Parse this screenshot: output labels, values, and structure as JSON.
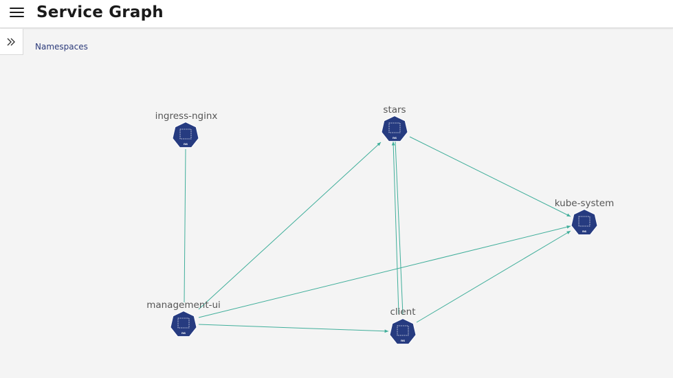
{
  "header": {
    "title": "Service Graph"
  },
  "breadcrumb": {
    "label": "Namespaces"
  },
  "colors": {
    "node_fill": "#263b80",
    "edge": "#3fae9a",
    "background": "#f4f4f4"
  },
  "graph": {
    "nodes": [
      {
        "id": "ingress-nginx",
        "label": "ingress-nginx",
        "badge": "ns",
        "icon": "namespace-icon"
      },
      {
        "id": "stars",
        "label": "stars",
        "badge": "ns",
        "icon": "namespace-icon"
      },
      {
        "id": "kube-system",
        "label": "kube-system",
        "badge": "ns",
        "icon": "namespace-icon"
      },
      {
        "id": "management-ui",
        "label": "management-ui",
        "badge": "ns",
        "icon": "namespace-icon"
      },
      {
        "id": "client",
        "label": "client",
        "badge": "ns",
        "icon": "namespace-icon"
      }
    ],
    "edges": [
      {
        "from": "management-ui",
        "to": "ingress-nginx"
      },
      {
        "from": "management-ui",
        "to": "stars"
      },
      {
        "from": "management-ui",
        "to": "kube-system"
      },
      {
        "from": "management-ui",
        "to": "client"
      },
      {
        "from": "stars",
        "to": "kube-system"
      },
      {
        "from": "client",
        "to": "stars"
      },
      {
        "from": "stars",
        "to": "client"
      },
      {
        "from": "client",
        "to": "kube-system"
      }
    ]
  }
}
